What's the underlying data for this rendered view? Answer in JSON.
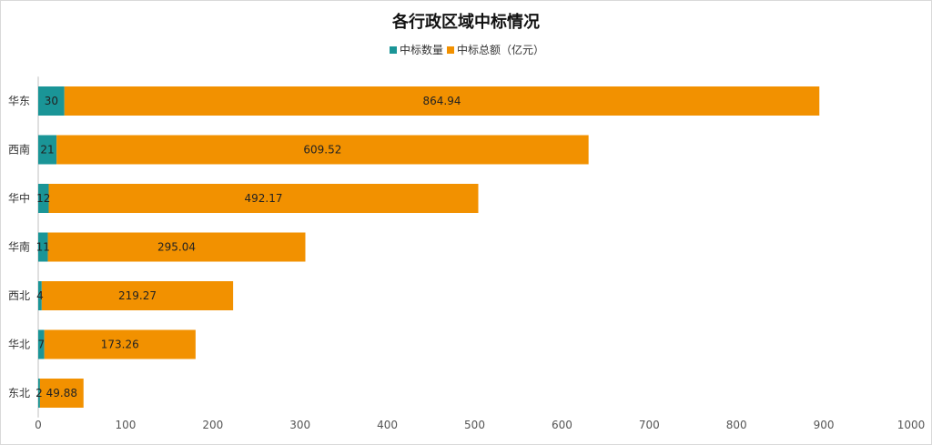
{
  "chart_data": {
    "type": "bar",
    "orientation": "horizontal",
    "stacked": true,
    "title": "各行政区域中标情况",
    "categories": [
      "华东",
      "西南",
      "华中",
      "华南",
      "西北",
      "华北",
      "东北"
    ],
    "series": [
      {
        "name": "中标数量",
        "values": [
          30,
          21,
          12,
          11,
          4,
          7,
          2
        ],
        "color": "#1a9597"
      },
      {
        "name": "中标总额（亿元）",
        "values": [
          864.94,
          609.52,
          492.17,
          295.04,
          219.27,
          173.26,
          49.88
        ],
        "color": "#f29100"
      }
    ],
    "xlim": [
      0,
      1000
    ],
    "xticks": [
      0,
      100,
      200,
      300,
      400,
      500,
      600,
      700,
      800,
      900,
      1000
    ],
    "legend_position": "top-center",
    "grid": false
  }
}
